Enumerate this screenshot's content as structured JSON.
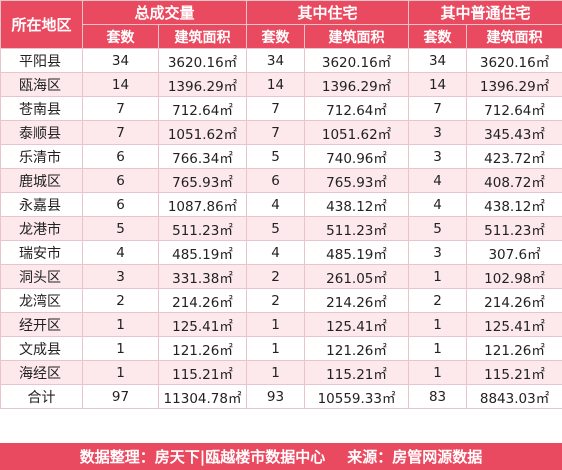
{
  "header": {
    "region": "所在地区",
    "groups": [
      "总成交量",
      "其中住宅",
      "其中普通住宅"
    ],
    "count_label": "套数",
    "area_label": "建筑面积"
  },
  "rows": [
    {
      "region": "平阳县",
      "total_units": "34",
      "total_area": "3620.16㎡",
      "res_units": "34",
      "res_area": "3620.16㎡",
      "ord_units": "34",
      "ord_area": "3620.16㎡"
    },
    {
      "region": "瓯海区",
      "total_units": "14",
      "total_area": "1396.29㎡",
      "res_units": "14",
      "res_area": "1396.29㎡",
      "ord_units": "14",
      "ord_area": "1396.29㎡"
    },
    {
      "region": "苍南县",
      "total_units": "7",
      "total_area": "712.64㎡",
      "res_units": "7",
      "res_area": "712.64㎡",
      "ord_units": "7",
      "ord_area": "712.64㎡"
    },
    {
      "region": "泰顺县",
      "total_units": "7",
      "total_area": "1051.62㎡",
      "res_units": "7",
      "res_area": "1051.62㎡",
      "ord_units": "3",
      "ord_area": "345.43㎡"
    },
    {
      "region": "乐清市",
      "total_units": "6",
      "total_area": "766.34㎡",
      "res_units": "5",
      "res_area": "740.96㎡",
      "ord_units": "3",
      "ord_area": "423.72㎡"
    },
    {
      "region": "鹿城区",
      "total_units": "6",
      "total_area": "765.93㎡",
      "res_units": "6",
      "res_area": "765.93㎡",
      "ord_units": "4",
      "ord_area": "408.72㎡"
    },
    {
      "region": "永嘉县",
      "total_units": "6",
      "total_area": "1087.86㎡",
      "res_units": "4",
      "res_area": "438.12㎡",
      "ord_units": "4",
      "ord_area": "438.12㎡"
    },
    {
      "region": "龙港市",
      "total_units": "5",
      "total_area": "511.23㎡",
      "res_units": "5",
      "res_area": "511.23㎡",
      "ord_units": "5",
      "ord_area": "511.23㎡"
    },
    {
      "region": "瑞安市",
      "total_units": "4",
      "total_area": "485.19㎡",
      "res_units": "4",
      "res_area": "485.19㎡",
      "ord_units": "3",
      "ord_area": "307.6㎡"
    },
    {
      "region": "洞头区",
      "total_units": "3",
      "total_area": "331.38㎡",
      "res_units": "2",
      "res_area": "261.05㎡",
      "ord_units": "1",
      "ord_area": "102.98㎡"
    },
    {
      "region": "龙湾区",
      "total_units": "2",
      "total_area": "214.26㎡",
      "res_units": "2",
      "res_area": "214.26㎡",
      "ord_units": "2",
      "ord_area": "214.26㎡"
    },
    {
      "region": "经开区",
      "total_units": "1",
      "total_area": "125.41㎡",
      "res_units": "1",
      "res_area": "125.41㎡",
      "ord_units": "1",
      "ord_area": "125.41㎡"
    },
    {
      "region": "文成县",
      "total_units": "1",
      "total_area": "121.26㎡",
      "res_units": "1",
      "res_area": "121.26㎡",
      "ord_units": "1",
      "ord_area": "121.26㎡"
    },
    {
      "region": "海经区",
      "total_units": "1",
      "total_area": "115.21㎡",
      "res_units": "1",
      "res_area": "115.21㎡",
      "ord_units": "1",
      "ord_area": "115.21㎡"
    }
  ],
  "total": {
    "region": "合计",
    "total_units": "97",
    "total_area": "11304.78㎡",
    "res_units": "93",
    "res_area": "10559.33㎡",
    "ord_units": "83",
    "ord_area": "8843.03㎡"
  },
  "footer": {
    "compiled": "数据整理：房天下|瓯越楼市数据中心",
    "source": "来源：房管网源数据"
  },
  "colors": {
    "header_bg": "#ea4a60",
    "stripe_bg": "#fde9ec",
    "border": "#e9c4cb"
  }
}
